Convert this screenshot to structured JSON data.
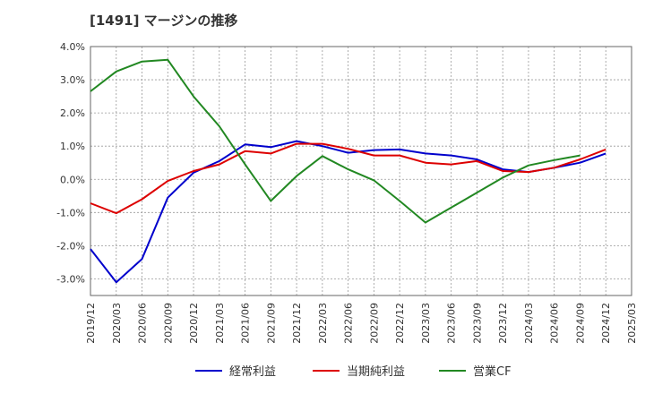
{
  "chart_data": {
    "type": "line",
    "title": "[1491]  マージンの推移",
    "x": [
      "2019/12",
      "2020/03",
      "2020/06",
      "2020/09",
      "2020/12",
      "2021/03",
      "2021/06",
      "2021/09",
      "2021/12",
      "2022/03",
      "2022/06",
      "2022/09",
      "2022/12",
      "2023/03",
      "2023/06",
      "2023/09",
      "2023/12",
      "2024/03",
      "2024/06",
      "2024/09",
      "2024/12",
      "2025/03"
    ],
    "ylim": [
      -3.5,
      4.0
    ],
    "yticks": [
      4.0,
      3.0,
      2.0,
      1.0,
      0.0,
      -1.0,
      -2.0,
      -3.0
    ],
    "ytick_labels": [
      "4.0%",
      "3.0%",
      "2.0%",
      "1.0%",
      "0.0%",
      "-1.0%",
      "-2.0%",
      "-3.0%"
    ],
    "grid": true,
    "legend_position": "bottom",
    "series": [
      {
        "name": "経常利益",
        "color": "#0000cc",
        "values": [
          -2.1,
          -3.1,
          -2.4,
          -0.55,
          0.2,
          0.55,
          1.05,
          0.97,
          1.15,
          1.0,
          0.8,
          0.88,
          0.9,
          0.78,
          0.72,
          0.6,
          0.3,
          0.22,
          0.35,
          0.5,
          0.78,
          null
        ]
      },
      {
        "name": "当期純利益",
        "color": "#dd0000",
        "values": [
          -0.72,
          -1.02,
          -0.6,
          -0.05,
          0.25,
          0.45,
          0.85,
          0.78,
          1.07,
          1.07,
          0.92,
          0.72,
          0.72,
          0.5,
          0.45,
          0.55,
          0.25,
          0.22,
          0.35,
          0.6,
          0.9,
          null
        ]
      },
      {
        "name": "営業CF",
        "color": "#228822",
        "values": [
          2.65,
          3.25,
          3.55,
          3.6,
          2.5,
          1.6,
          0.45,
          -0.65,
          0.1,
          0.7,
          0.3,
          -0.03,
          -0.65,
          -1.3,
          -0.85,
          -0.4,
          0.05,
          0.42,
          0.58,
          0.72,
          null,
          null
        ]
      }
    ]
  }
}
